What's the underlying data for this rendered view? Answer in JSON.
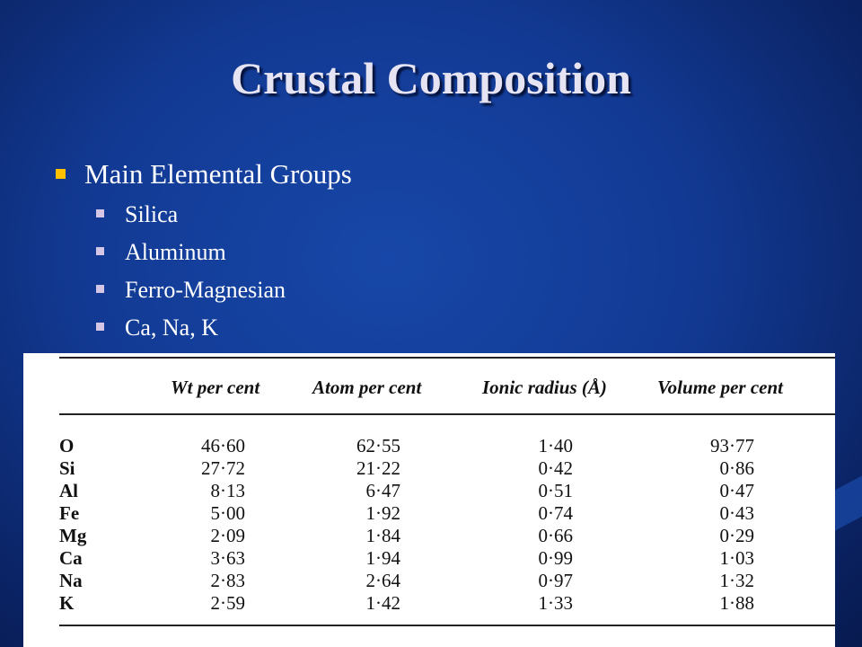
{
  "slide": {
    "title": "Crustal Composition",
    "bullet_main": "Main Elemental Groups",
    "sub_bullets": [
      "Silica",
      "Aluminum",
      "Ferro-Magnesian",
      "Ca, Na, K"
    ]
  },
  "table": {
    "headers": [
      "Wt per cent",
      "Atom per cent",
      "Ionic radius (Å)",
      "Volume per cent"
    ],
    "rows": [
      {
        "element": "O",
        "wt": "46·60",
        "atom": "62·55",
        "radius": "1·40",
        "volume": "93·77"
      },
      {
        "element": "Si",
        "wt": "27·72",
        "atom": "21·22",
        "radius": "0·42",
        "volume": "0·86"
      },
      {
        "element": "Al",
        "wt": "8·13",
        "atom": "6·47",
        "radius": "0·51",
        "volume": "0·47"
      },
      {
        "element": "Fe",
        "wt": "5·00",
        "atom": "1·92",
        "radius": "0·74",
        "volume": "0·43"
      },
      {
        "element": "Mg",
        "wt": "2·09",
        "atom": "1·84",
        "radius": "0·66",
        "volume": "0·29"
      },
      {
        "element": "Ca",
        "wt": "3·63",
        "atom": "1·94",
        "radius": "0·99",
        "volume": "1·03"
      },
      {
        "element": "Na",
        "wt": "2·83",
        "atom": "2·64",
        "radius": "0·97",
        "volume": "1·32"
      },
      {
        "element": "K",
        "wt": "2·59",
        "atom": "1·42",
        "radius": "1·33",
        "volume": "1·88"
      }
    ]
  },
  "colors": {
    "background": "#123a94",
    "title_text": "#e6e3f2",
    "main_bullet": "#ffc000",
    "sub_bullet": "#d6c6e6"
  }
}
